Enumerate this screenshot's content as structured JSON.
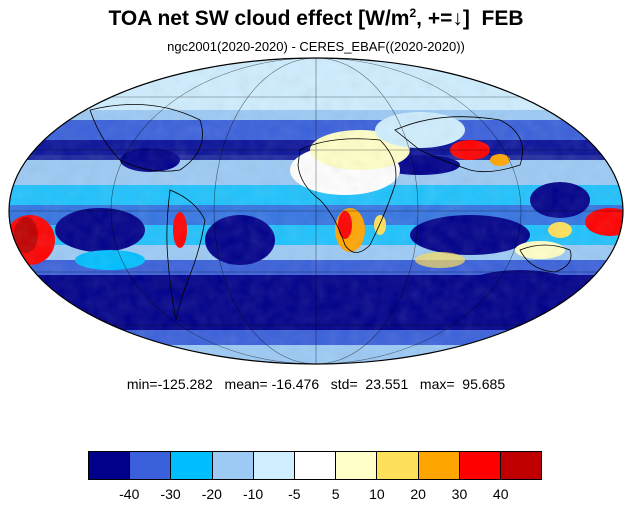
{
  "map": {
    "title": "TOA net SW cloud effect [W/m², +=↓]  FEB",
    "subtitle": "ngc2001(2020-2020) - CERES_EBAF((2020-2020))",
    "projection": "mollweide",
    "stats": {
      "min": "min=-125.282",
      "mean": "mean= -16.476",
      "std": "std=  23.551",
      "max": "max=  95.685"
    },
    "colorbar": {
      "colors": [
        "#00008b",
        "#3a61db",
        "#00bfff",
        "#9ccaf5",
        "#cfeeff",
        "#ffffff",
        "#ffffc8",
        "#ffe05a",
        "#ffa500",
        "#ff0000",
        "#c00000"
      ],
      "labels": [
        "-40",
        "-30",
        "-20",
        "-10",
        "-5",
        "5",
        "10",
        "20",
        "30",
        "40"
      ]
    }
  }
}
